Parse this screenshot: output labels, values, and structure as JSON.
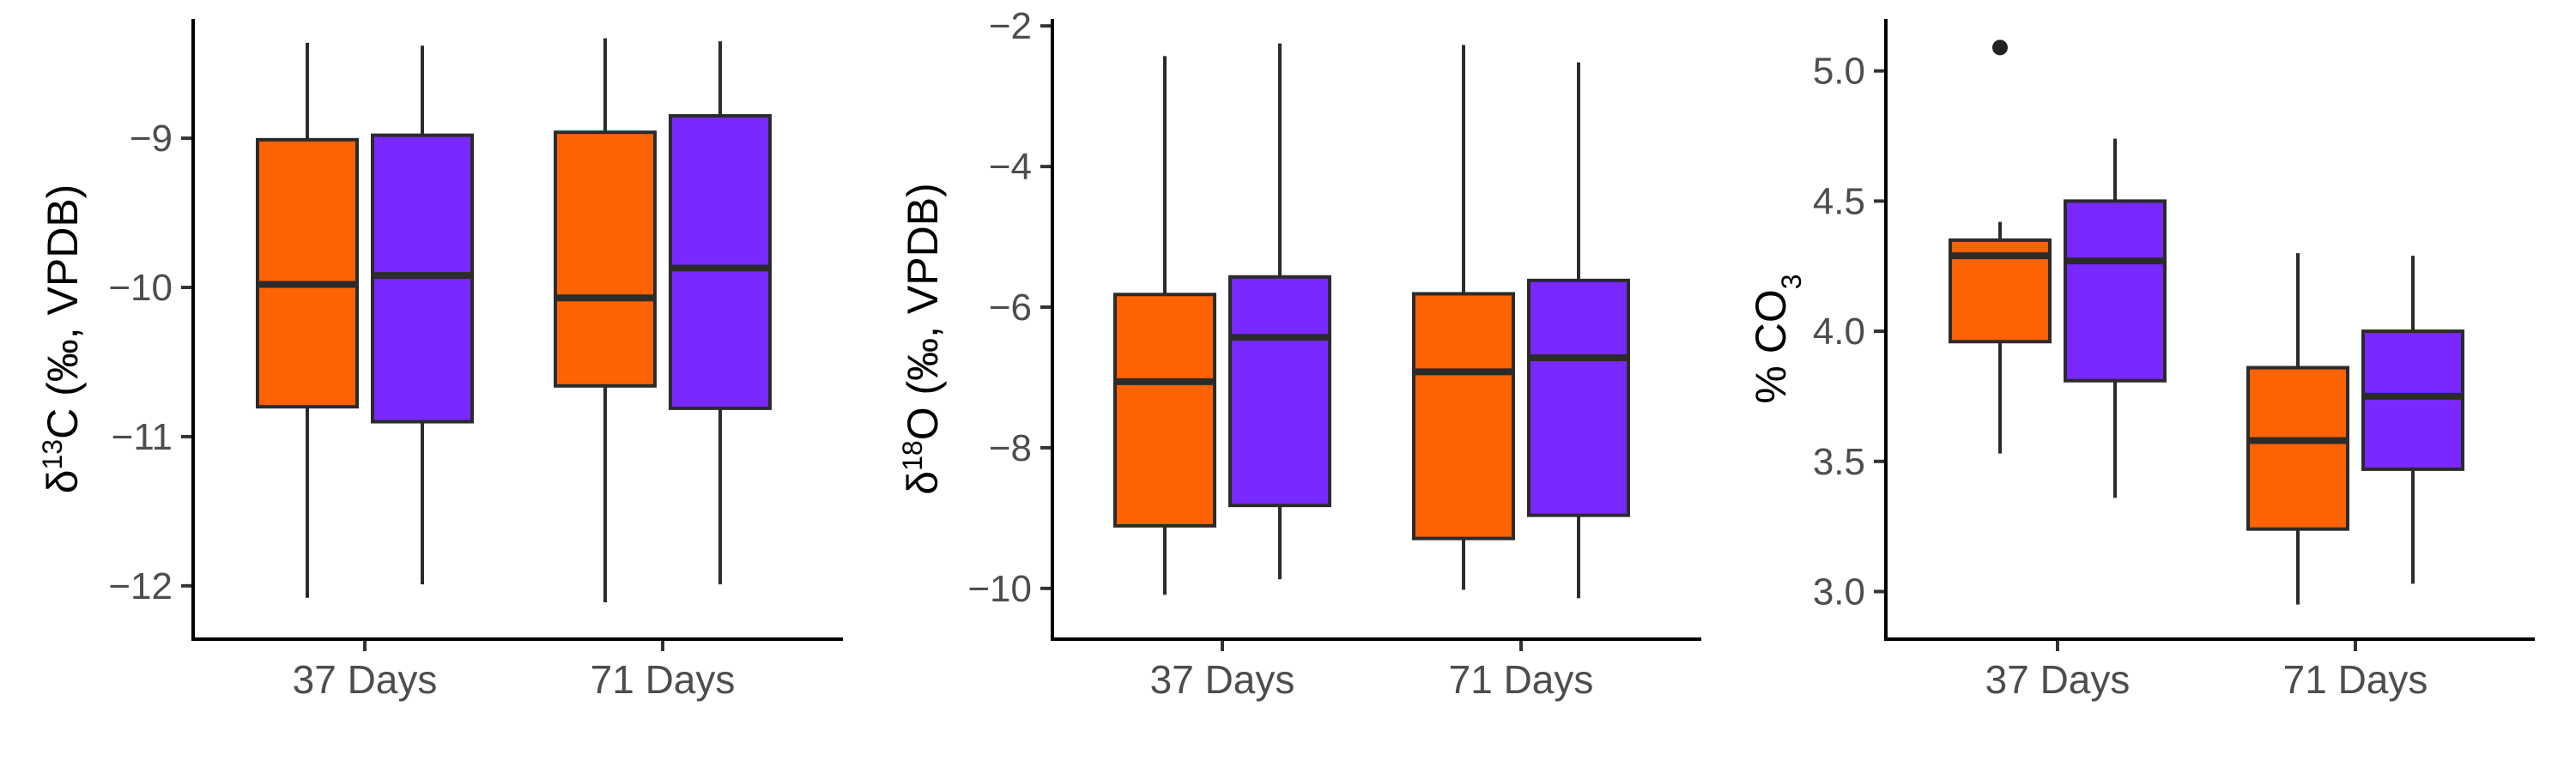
{
  "colors": {
    "group_1": "#FF6200",
    "group_2": "#7928FF",
    "box_line": "#2b2b2b",
    "axis_line": "#000000"
  },
  "chart_data": [
    {
      "type": "boxplot",
      "ylabel": {
        "prefix": "δ",
        "sup": "13",
        "main": "C (‰, VPDB)"
      },
      "categories": [
        "37 Days",
        "71 Days"
      ],
      "ylim": [
        -12.3,
        8.3
      ],
      "yticks": [
        -12,
        -11,
        -10,
        -9
      ],
      "ytick_labels": [
        "−12",
        "−11",
        "−10",
        "−9"
      ],
      "grid": false,
      "legend": "none",
      "series": [
        {
          "color": "#FF6200",
          "boxes": [
            {
              "min": -12.08,
              "q1": -10.8,
              "median": -9.98,
              "q3": -9.01,
              "max": -8.36
            },
            {
              "min": -12.11,
              "q1": -10.66,
              "median": -10.07,
              "q3": -8.96,
              "max": -8.33
            }
          ]
        },
        {
          "color": "#7928FF",
          "boxes": [
            {
              "min": -11.99,
              "q1": -10.9,
              "median": -9.92,
              "q3": -8.98,
              "max": -8.38
            },
            {
              "min": -11.99,
              "q1": -10.81,
              "median": -9.87,
              "q3": -8.85,
              "max": -8.35
            }
          ]
        }
      ]
    },
    {
      "type": "boxplot",
      "ylabel": {
        "prefix": "δ",
        "sup": "18",
        "main": "O (‰, VPDB)"
      },
      "categories": [
        "37 Days",
        "71 Days"
      ],
      "ylim": [
        -10.6,
        -1.9
      ],
      "yticks": [
        -10,
        -8,
        -6,
        -4,
        -2
      ],
      "ytick_labels": [
        "−10",
        "−8",
        "−6",
        "−4",
        "−2"
      ],
      "grid": false,
      "legend": "none",
      "series": [
        {
          "color": "#FF6200",
          "boxes": [
            {
              "min": -10.09,
              "q1": -9.11,
              "median": -7.06,
              "q3": -5.82,
              "max": -2.43
            },
            {
              "min": -10.02,
              "q1": -9.29,
              "median": -6.92,
              "q3": -5.81,
              "max": -2.27
            }
          ]
        },
        {
          "color": "#7928FF",
          "boxes": [
            {
              "min": -9.87,
              "q1": -8.82,
              "median": -6.43,
              "q3": -5.57,
              "max": -2.25
            },
            {
              "min": -10.14,
              "q1": -8.96,
              "median": -6.72,
              "q3": -5.62,
              "max": -2.52
            }
          ]
        }
      ]
    },
    {
      "type": "boxplot",
      "ylabel": {
        "prefix": "% CO",
        "sub": "3"
      },
      "categories": [
        "37 Days",
        "71 Days"
      ],
      "ylim": [
        2.85,
        5.2
      ],
      "yticks": [
        3.0,
        3.5,
        4.0,
        4.5,
        5.0
      ],
      "ytick_labels": [
        "3.0",
        "3.5",
        "4.0",
        "4.5",
        "5.0"
      ],
      "grid": false,
      "legend": "none",
      "series": [
        {
          "color": "#FF6200",
          "boxes": [
            {
              "min": 3.53,
              "q1": 3.96,
              "median": 4.29,
              "q3": 4.35,
              "max": 4.42,
              "outliers": [
                5.09
              ]
            },
            {
              "min": 2.95,
              "q1": 3.24,
              "median": 3.58,
              "q3": 3.86,
              "max": 4.3
            }
          ]
        },
        {
          "color": "#7928FF",
          "boxes": [
            {
              "min": 3.36,
              "q1": 3.81,
              "median": 4.27,
              "q3": 4.5,
              "max": 4.74
            },
            {
              "min": 3.03,
              "q1": 3.47,
              "median": 3.75,
              "q3": 4.0,
              "max": 4.29
            }
          ]
        }
      ]
    }
  ]
}
